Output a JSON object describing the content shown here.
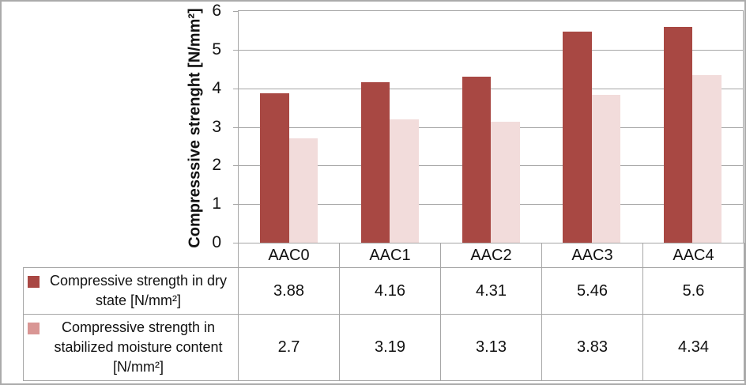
{
  "chart_data": {
    "type": "bar",
    "title": "",
    "xlabel": "",
    "ylabel": "Compresssive strenght [N/mm²]",
    "ylim": [
      0,
      6
    ],
    "yticks": [
      0,
      1,
      2,
      3,
      4,
      5,
      6
    ],
    "grid": true,
    "legend_position": "data-table-left-column",
    "categories": [
      "AAC0",
      "AAC1",
      "AAC2",
      "AAC3",
      "AAC4"
    ],
    "series": [
      {
        "name": "Compressive strength in dry state [N/mm²]",
        "values": [
          3.88,
          4.16,
          4.31,
          5.46,
          5.6
        ],
        "bar_color": "#A84843",
        "legend_color": "#A94743"
      },
      {
        "name": "Compressive strength in stabilized moisture content [N/mm²]",
        "values": [
          2.7,
          3.19,
          3.13,
          3.83,
          4.34
        ],
        "bar_color": "#F2DCDB",
        "legend_color": "#D99694"
      }
    ]
  },
  "colors": {
    "grid": "#A6A6A6",
    "axis": "#A6A6A6",
    "table_border": "#A6A6A6",
    "outer_frame": "#ABABAB",
    "text": "#111111",
    "background": "#FFFFFF"
  }
}
